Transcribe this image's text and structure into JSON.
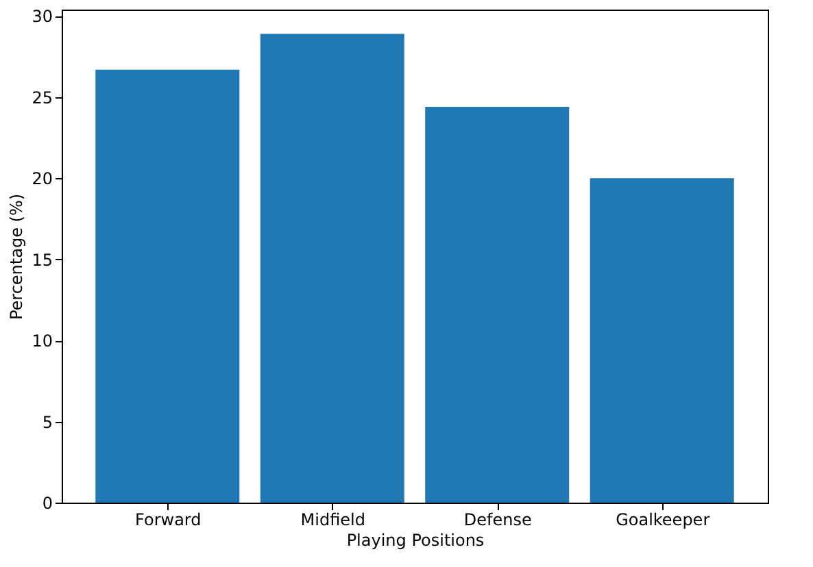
{
  "chart_data": {
    "type": "bar",
    "xlabel": "Playing Positions",
    "ylabel": "Percentage (%)",
    "categories": [
      "Forward",
      "Midfield",
      "Defense",
      "Goalkeeper"
    ],
    "values": [
      26.7,
      28.9,
      24.4,
      20.0
    ],
    "color": "#1f77b4",
    "ylim": [
      0,
      30.4
    ],
    "yticks": [
      0,
      5,
      10,
      15,
      20,
      25,
      30
    ],
    "grid": false
  }
}
